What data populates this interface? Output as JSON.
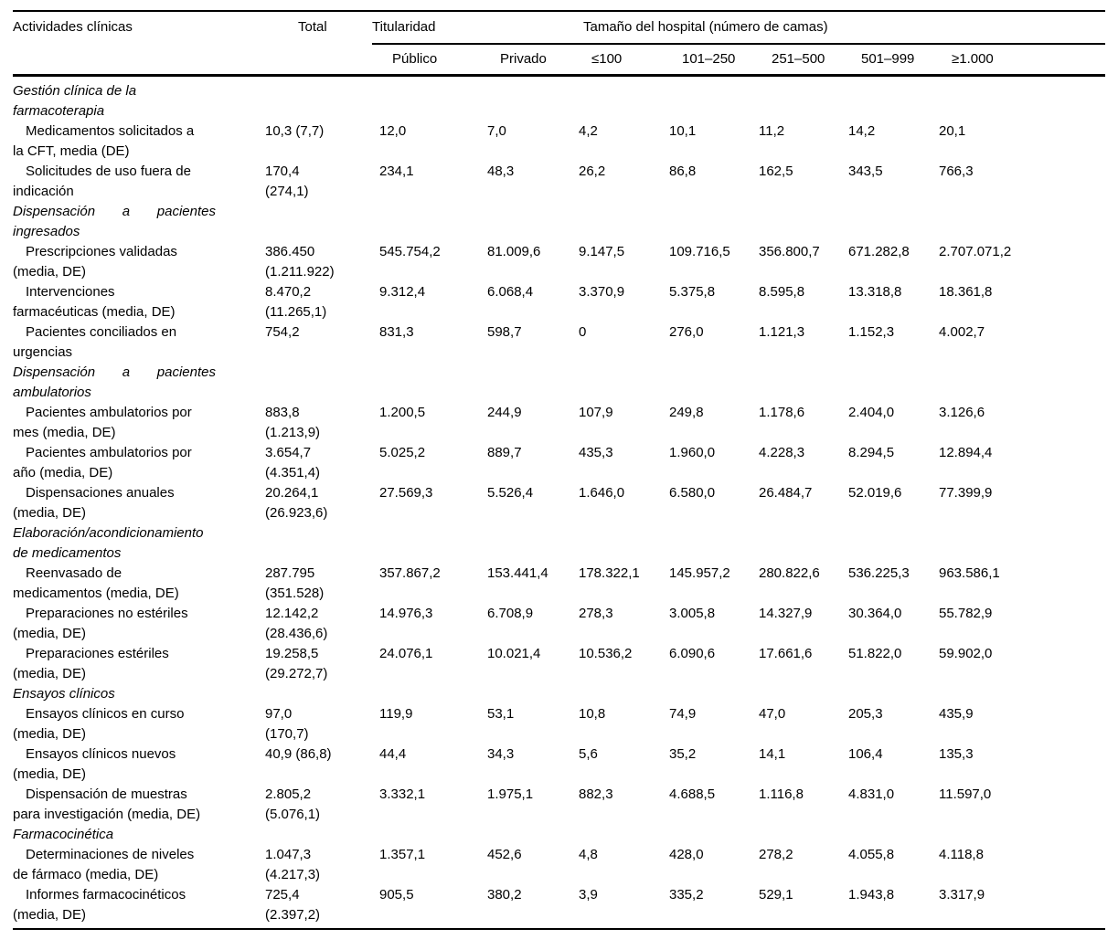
{
  "table": {
    "columns": {
      "activities": "Actividades clínicas",
      "total": "Total",
      "group_ownership": "Titularidad",
      "group_size": "Tamaño del hospital (número de camas)",
      "subcolumns": [
        "Público",
        "Privado",
        "≤100",
        "101–250",
        "251–500",
        "501–999",
        "≥1.000"
      ]
    },
    "sections": [
      {
        "title_lines": [
          "Gestión clínica de la",
          "farmacoterapia"
        ],
        "justified": false,
        "rows": [
          {
            "label": [
              "Medicamentos solicitados a",
              "la CFT, media (DE)"
            ],
            "cells": [
              [
                "10,3 (7,7)"
              ],
              [
                "12,0"
              ],
              [
                "7,0"
              ],
              [
                "4,2"
              ],
              [
                "10,1"
              ],
              [
                "11,2"
              ],
              [
                "14,2"
              ],
              [
                "20,1"
              ]
            ]
          },
          {
            "label": [
              "Solicitudes de uso fuera de",
              "indicación"
            ],
            "cells": [
              [
                "170,4",
                "(274,1)"
              ],
              [
                "234,1"
              ],
              [
                "48,3"
              ],
              [
                "26,2"
              ],
              [
                "86,8"
              ],
              [
                "162,5"
              ],
              [
                "343,5"
              ],
              [
                "766,3"
              ]
            ]
          }
        ]
      },
      {
        "title_lines": [
          "Dispensación a pacientes",
          "ingresados"
        ],
        "justified": true,
        "rows": [
          {
            "label": [
              "Prescripciones validadas",
              "(media, DE)"
            ],
            "cells": [
              [
                "386.450",
                "(1.211.922)"
              ],
              [
                "545.754,2"
              ],
              [
                "81.009,6"
              ],
              [
                "9.147,5"
              ],
              [
                "109.716,5"
              ],
              [
                "356.800,7"
              ],
              [
                "671.282,8"
              ],
              [
                "2.707.071,2"
              ]
            ]
          },
          {
            "label": [
              "Intervenciones",
              "farmacéuticas (media, DE)"
            ],
            "cells": [
              [
                "8.470,2",
                "(11.265,1)"
              ],
              [
                "9.312,4"
              ],
              [
                "6.068,4"
              ],
              [
                "3.370,9"
              ],
              [
                "5.375,8"
              ],
              [
                "8.595,8"
              ],
              [
                "13.318,8"
              ],
              [
                "18.361,8"
              ]
            ]
          },
          {
            "label": [
              "Pacientes conciliados en",
              "urgencias"
            ],
            "cells": [
              [
                "754,2"
              ],
              [
                "831,3"
              ],
              [
                "598,7"
              ],
              [
                "0"
              ],
              [
                "276,0"
              ],
              [
                "1.121,3"
              ],
              [
                "1.152,3"
              ],
              [
                "4.002,7"
              ]
            ]
          }
        ]
      },
      {
        "title_lines": [
          "Dispensación a pacientes",
          "ambulatorios"
        ],
        "justified": true,
        "rows": [
          {
            "label": [
              "Pacientes ambulatorios por",
              "mes (media, DE)"
            ],
            "cells": [
              [
                "883,8",
                "(1.213,9)"
              ],
              [
                "1.200,5"
              ],
              [
                "244,9"
              ],
              [
                "107,9"
              ],
              [
                "249,8"
              ],
              [
                "1.178,6"
              ],
              [
                "2.404,0"
              ],
              [
                "3.126,6"
              ]
            ]
          },
          {
            "label": [
              "Pacientes ambulatorios por",
              "año (media, DE)"
            ],
            "cells": [
              [
                "3.654,7",
                "(4.351,4)"
              ],
              [
                "5.025,2"
              ],
              [
                "889,7"
              ],
              [
                "435,3"
              ],
              [
                "1.960,0"
              ],
              [
                "4.228,3"
              ],
              [
                "8.294,5"
              ],
              [
                "12.894,4"
              ]
            ]
          },
          {
            "label": [
              "Dispensaciones anuales",
              "(media, DE)"
            ],
            "cells": [
              [
                "20.264,1",
                "(26.923,6)"
              ],
              [
                "27.569,3"
              ],
              [
                "5.526,4"
              ],
              [
                "1.646,0"
              ],
              [
                "6.580,0"
              ],
              [
                "26.484,7"
              ],
              [
                "52.019,6"
              ],
              [
                "77.399,9"
              ]
            ]
          }
        ]
      },
      {
        "title_lines": [
          "Elaboración/acondicionamiento",
          "de medicamentos"
        ],
        "justified": false,
        "rows": [
          {
            "label": [
              "Reenvasado de",
              "medicamentos (media, DE)"
            ],
            "cells": [
              [
                "287.795",
                "(351.528)"
              ],
              [
                "357.867,2"
              ],
              [
                "153.441,4"
              ],
              [
                "178.322,1"
              ],
              [
                "145.957,2"
              ],
              [
                "280.822,6"
              ],
              [
                "536.225,3"
              ],
              [
                "963.586,1"
              ]
            ]
          },
          {
            "label": [
              "Preparaciones no estériles",
              "(media, DE)"
            ],
            "cells": [
              [
                "12.142,2",
                "(28.436,6)"
              ],
              [
                "14.976,3"
              ],
              [
                "6.708,9"
              ],
              [
                "278,3"
              ],
              [
                "3.005,8"
              ],
              [
                "14.327,9"
              ],
              [
                "30.364,0"
              ],
              [
                "55.782,9"
              ]
            ]
          },
          {
            "label": [
              "Preparaciones estériles",
              "(media, DE)"
            ],
            "cells": [
              [
                "19.258,5",
                "(29.272,7)"
              ],
              [
                "24.076,1"
              ],
              [
                "10.021,4"
              ],
              [
                "10.536,2"
              ],
              [
                "6.090,6"
              ],
              [
                "17.661,6"
              ],
              [
                "51.822,0"
              ],
              [
                "59.902,0"
              ]
            ]
          }
        ]
      },
      {
        "title_lines": [
          "Ensayos clínicos"
        ],
        "justified": false,
        "rows": [
          {
            "label": [
              "Ensayos clínicos en curso",
              "(media, DE)"
            ],
            "cells": [
              [
                "97,0",
                "(170,7)"
              ],
              [
                "119,9"
              ],
              [
                "53,1"
              ],
              [
                "10,8"
              ],
              [
                "74,9"
              ],
              [
                "47,0"
              ],
              [
                "205,3"
              ],
              [
                "435,9"
              ]
            ]
          },
          {
            "label": [
              "Ensayos clínicos nuevos",
              "(media, DE)"
            ],
            "cells": [
              [
                "40,9 (86,8)"
              ],
              [
                "44,4"
              ],
              [
                "34,3"
              ],
              [
                "5,6"
              ],
              [
                "35,2"
              ],
              [
                "14,1"
              ],
              [
                "106,4"
              ],
              [
                "135,3"
              ]
            ]
          },
          {
            "label": [
              "Dispensación de muestras",
              "para investigación (media, DE)"
            ],
            "cells": [
              [
                "2.805,2",
                "(5.076,1)"
              ],
              [
                "3.332,1"
              ],
              [
                "1.975,1"
              ],
              [
                "882,3"
              ],
              [
                "4.688,5"
              ],
              [
                "1.116,8"
              ],
              [
                "4.831,0"
              ],
              [
                "11.597,0"
              ]
            ]
          }
        ]
      },
      {
        "title_lines": [
          "Farmacocinética"
        ],
        "justified": false,
        "rows": [
          {
            "label": [
              "Determinaciones de niveles",
              "de fármaco (media, DE)"
            ],
            "cells": [
              [
                "1.047,3",
                "(4.217,3)"
              ],
              [
                "1.357,1"
              ],
              [
                "452,6"
              ],
              [
                "4,8"
              ],
              [
                "428,0"
              ],
              [
                "278,2"
              ],
              [
                "4.055,8"
              ],
              [
                "4.118,8"
              ]
            ]
          },
          {
            "label": [
              "Informes farmacocinéticos",
              "(media, DE)"
            ],
            "cells": [
              [
                "725,4",
                "(2.397,2)"
              ],
              [
                "905,5"
              ],
              [
                "380,2"
              ],
              [
                "3,9"
              ],
              [
                "335,2"
              ],
              [
                "529,1"
              ],
              [
                "1.943,8"
              ],
              [
                "3.317,9"
              ]
            ]
          }
        ]
      }
    ]
  }
}
